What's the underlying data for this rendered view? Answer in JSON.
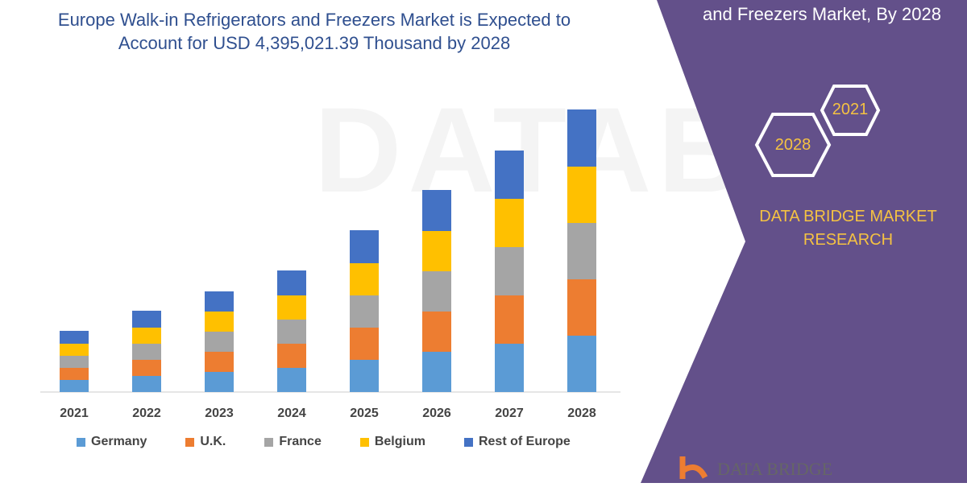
{
  "title": "Europe Walk-in Refrigerators and Freezers Market is Expected to Account for USD 4,395,021.39 Thousand  by 2028",
  "side_panel": {
    "title": "and Freezers Market, By 2028",
    "hex_years": [
      "2021",
      "2028"
    ],
    "brand": "DATA BRIDGE MARKET RESEARCH",
    "logo_text": "DATA BRIDGE",
    "color": "#63508a"
  },
  "chart_data": {
    "type": "bar",
    "stacked": true,
    "categories": [
      "2021",
      "2022",
      "2023",
      "2024",
      "2025",
      "2026",
      "2027",
      "2028"
    ],
    "series": [
      {
        "name": "Germany",
        "color": "#5b9bd5",
        "values": [
          15,
          20,
          25,
          30,
          40,
          50,
          60,
          70
        ]
      },
      {
        "name": "U.K.",
        "color": "#ed7d31",
        "values": [
          15,
          20,
          25,
          30,
          40,
          50,
          60,
          70
        ]
      },
      {
        "name": "France",
        "color": "#a5a5a5",
        "values": [
          15,
          20,
          25,
          30,
          40,
          50,
          60,
          70
        ]
      },
      {
        "name": "Belgium",
        "color": "#ffc000",
        "values": [
          15,
          20,
          25,
          30,
          40,
          50,
          60,
          70
        ]
      },
      {
        "name": "Rest of Europe",
        "color": "#4472c4",
        "values": [
          16,
          21,
          25,
          31,
          41,
          51,
          60,
          71
        ]
      }
    ],
    "legend": "bottom",
    "grid": false,
    "y_axis_visible": false
  }
}
